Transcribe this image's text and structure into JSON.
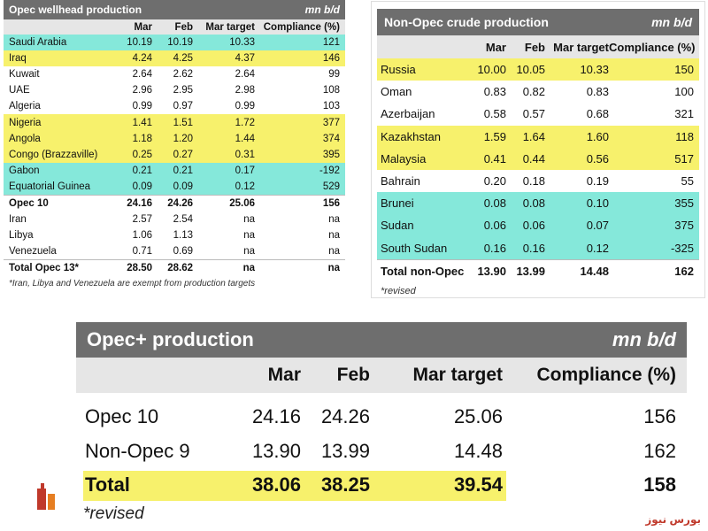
{
  "opec_wellhead": {
    "title": "Opec wellhead production",
    "unit": "mn b/d",
    "columns": [
      "Mar",
      "Feb",
      "Mar target",
      "Compliance (%)"
    ],
    "rows": [
      {
        "name": "Saudi Arabia",
        "mar": "10.19",
        "feb": "10.19",
        "target": "10.33",
        "compliance": "121",
        "highlight": "cyan"
      },
      {
        "name": "Iraq",
        "mar": "4.24",
        "feb": "4.25",
        "target": "4.37",
        "compliance": "146",
        "highlight": "yellow"
      },
      {
        "name": "Kuwait",
        "mar": "2.64",
        "feb": "2.62",
        "target": "2.64",
        "compliance": "99",
        "highlight": ""
      },
      {
        "name": "UAE",
        "mar": "2.96",
        "feb": "2.95",
        "target": "2.98",
        "compliance": "108",
        "highlight": ""
      },
      {
        "name": "Algeria",
        "mar": "0.99",
        "feb": "0.97",
        "target": "0.99",
        "compliance": "103",
        "highlight": ""
      },
      {
        "name": "Nigeria",
        "mar": "1.41",
        "feb": "1.51",
        "target": "1.72",
        "compliance": "377",
        "highlight": "yellow"
      },
      {
        "name": "Angola",
        "mar": "1.18",
        "feb": "1.20",
        "target": "1.44",
        "compliance": "374",
        "highlight": "yellow"
      },
      {
        "name": "Congo (Brazzaville)",
        "mar": "0.25",
        "feb": "0.27",
        "target": "0.31",
        "compliance": "395",
        "highlight": "yellow"
      },
      {
        "name": "Gabon",
        "mar": "0.21",
        "feb": "0.21",
        "target": "0.17",
        "compliance": "-192",
        "highlight": "cyan"
      },
      {
        "name": "Equatorial Guinea",
        "mar": "0.09",
        "feb": "0.09",
        "target": "0.12",
        "compliance": "529",
        "highlight": "cyan"
      },
      {
        "name": "Opec 10",
        "mar": "24.16",
        "feb": "24.26",
        "target": "25.06",
        "compliance": "156",
        "highlight": "",
        "bold": true,
        "sep": true
      },
      {
        "name": "Iran",
        "mar": "2.57",
        "feb": "2.54",
        "target": "na",
        "compliance": "na",
        "highlight": ""
      },
      {
        "name": "Libya",
        "mar": "1.06",
        "feb": "1.13",
        "target": "na",
        "compliance": "na",
        "highlight": ""
      },
      {
        "name": "Venezuela",
        "mar": "0.71",
        "feb": "0.69",
        "target": "na",
        "compliance": "na",
        "highlight": ""
      },
      {
        "name": "Total Opec 13*",
        "mar": "28.50",
        "feb": "28.62",
        "target": "na",
        "compliance": "na",
        "highlight": "",
        "bold": true,
        "sep": true
      }
    ],
    "footnote": "*Iran, Libya and Venezuela are exempt from production targets"
  },
  "non_opec": {
    "title": "Non-Opec crude production",
    "unit": "mn b/d",
    "columns": [
      "Mar",
      "Feb",
      "Mar target",
      "Compliance (%)"
    ],
    "rows": [
      {
        "name": "Russia",
        "mar": "10.00",
        "feb": "10.05",
        "target": "10.33",
        "compliance": "150",
        "highlight": "yellow"
      },
      {
        "name": "Oman",
        "mar": "0.83",
        "feb": "0.82",
        "target": "0.83",
        "compliance": "100",
        "highlight": ""
      },
      {
        "name": "Azerbaijan",
        "mar": "0.58",
        "feb": "0.57",
        "target": "0.68",
        "compliance": "321",
        "highlight": ""
      },
      {
        "name": "Kazakhstan",
        "mar": "1.59",
        "feb": "1.64",
        "target": "1.60",
        "compliance": "118",
        "highlight": "yellow"
      },
      {
        "name": "Malaysia",
        "mar": "0.41",
        "feb": "0.44",
        "target": "0.56",
        "compliance": "517",
        "highlight": "yellow"
      },
      {
        "name": "Bahrain",
        "mar": "0.20",
        "feb": "0.18",
        "target": "0.19",
        "compliance": "55",
        "highlight": ""
      },
      {
        "name": "Brunei",
        "mar": "0.08",
        "feb": "0.08",
        "target": "0.10",
        "compliance": "355",
        "highlight": "cyan"
      },
      {
        "name": "Sudan",
        "mar": "0.06",
        "feb": "0.06",
        "target": "0.07",
        "compliance": "375",
        "highlight": "cyan"
      },
      {
        "name": "South Sudan",
        "mar": "0.16",
        "feb": "0.16",
        "target": "0.12",
        "compliance": "-325",
        "highlight": "cyan"
      },
      {
        "name": "Total non-Opec",
        "mar": "13.90",
        "feb": "13.99",
        "target": "14.48",
        "compliance": "162",
        "highlight": "",
        "bold": true,
        "sep": true
      }
    ],
    "footnote": "*revised"
  },
  "opec_plus": {
    "title": "Opec+ production",
    "unit": "mn b/d",
    "columns": [
      "Mar",
      "Feb",
      "Mar target",
      "Compliance (%)"
    ],
    "rows": [
      {
        "name": "Opec 10",
        "mar": "24.16",
        "feb": "24.26",
        "target": "25.06",
        "compliance": "156",
        "bold": false
      },
      {
        "name": "Non-Opec 9",
        "mar": "13.90",
        "feb": "13.99",
        "target": "14.48",
        "compliance": "162",
        "bold": false
      },
      {
        "name": "Total",
        "mar": "38.06",
        "feb": "38.25",
        "target": "39.54",
        "compliance": "158",
        "bold": true
      }
    ],
    "footnote": "*revised"
  },
  "watermark": {
    "text": "بورس نیوز"
  },
  "colors": {
    "header_bg": "#6e6e6e",
    "colhdr_bg": "#e6e6e6",
    "highlight_yellow": "#f6ee52",
    "highlight_cyan": "#5ce0ce",
    "brand": "#c0392b"
  }
}
